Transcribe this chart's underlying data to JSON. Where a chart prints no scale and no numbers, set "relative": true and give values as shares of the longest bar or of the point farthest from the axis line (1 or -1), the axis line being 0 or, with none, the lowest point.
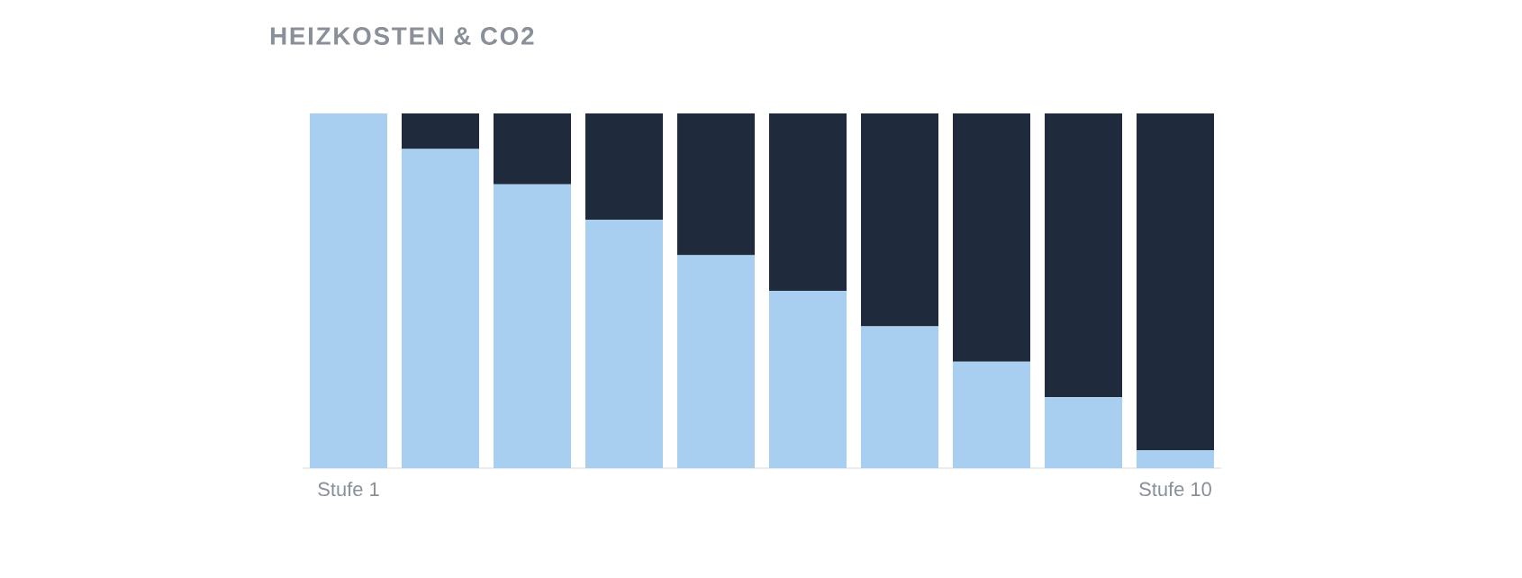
{
  "chart_data": {
    "type": "bar",
    "title": "HEIZKOSTEN & CO2",
    "stacked": true,
    "relative": true,
    "categories": [
      "Stufe 1",
      null,
      null,
      null,
      null,
      null,
      null,
      null,
      null,
      "Stufe 10"
    ],
    "series": [
      {
        "color": "#a8cff0",
        "values": [
          1,
          0.9,
          0.8,
          0.7,
          0.6,
          0.5,
          0.4,
          0.3,
          0.2,
          0.05
        ]
      },
      {
        "color": "#1f2b3c",
        "values": [
          0,
          0.1,
          0.2,
          0.3,
          0.4,
          0.5,
          0.6,
          0.7,
          0.8,
          0.95
        ]
      }
    ]
  }
}
